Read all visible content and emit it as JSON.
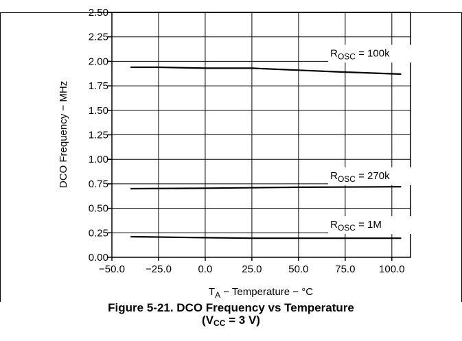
{
  "chart_data": {
    "type": "line",
    "xlabel": {
      "main": "T",
      "sub": "A",
      "rest": " − Temperature − °C"
    },
    "ylabel": "DCO Frequency − MHz",
    "xlim": [
      -50,
      110
    ],
    "ylim": [
      0,
      2.5
    ],
    "x_ticks": [
      "−50.0",
      "−25.0",
      "0.0",
      "25.0",
      "50.0",
      "75.0",
      "100.0"
    ],
    "x_tick_values": [
      -50,
      -25,
      0,
      25,
      50,
      75,
      100
    ],
    "y_ticks": [
      "0.00",
      "0.25",
      "0.50",
      "0.75",
      "1.00",
      "1.25",
      "1.50",
      "1.75",
      "2.00",
      "2.25",
      "2.50"
    ],
    "y_tick_values": [
      0,
      0.25,
      0.5,
      0.75,
      1.0,
      1.25,
      1.5,
      1.75,
      2.0,
      2.25,
      2.5
    ],
    "grid": true,
    "series": [
      {
        "name": "R_OSC = 100k",
        "label_main": "R",
        "label_sub": "OSC",
        "label_rest": " = 100k",
        "label_at": [
          67,
          2.05
        ],
        "x": [
          -40,
          -25,
          0,
          25,
          50,
          75,
          105
        ],
        "y": [
          1.94,
          1.94,
          1.93,
          1.93,
          1.91,
          1.89,
          1.87
        ]
      },
      {
        "name": "R_OSC = 270k",
        "label_main": "R",
        "label_sub": "OSC",
        "label_rest": " = 270k",
        "label_at": [
          67,
          0.8
        ],
        "x": [
          -40,
          0,
          50,
          105
        ],
        "y": [
          0.7,
          0.705,
          0.715,
          0.72
        ]
      },
      {
        "name": "R_OSC = 1M",
        "label_main": "R",
        "label_sub": "OSC",
        "label_rest": " = 1M",
        "label_at": [
          67,
          0.3
        ],
        "x": [
          -40,
          0,
          25,
          105
        ],
        "y": [
          0.21,
          0.2,
          0.195,
          0.195
        ]
      }
    ]
  },
  "caption": {
    "line1": "Figure 5-21.  DCO Frequency vs Temperature",
    "line2_pre": "(V",
    "line2_sub": "CC",
    "line2_post": " = 3 V)"
  }
}
